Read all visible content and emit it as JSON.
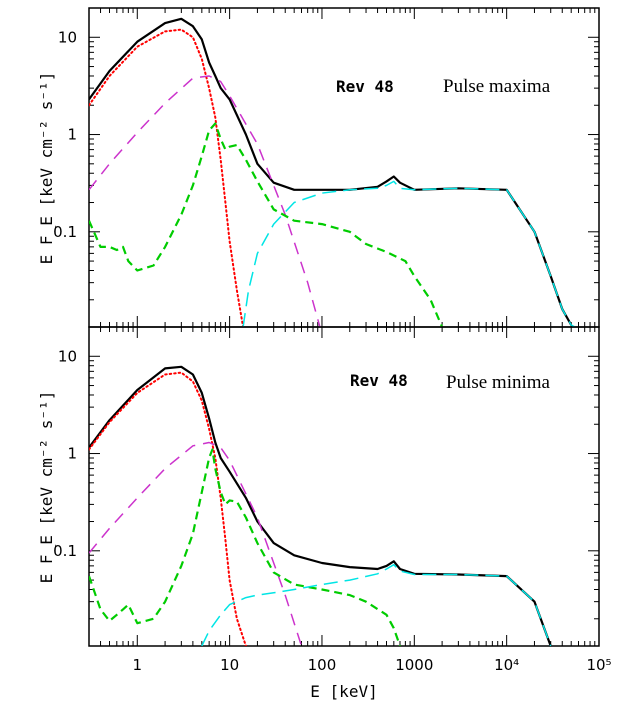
{
  "chart_data": [
    {
      "type": "line",
      "panel": "top",
      "annotation_rev": "Rev 48",
      "annotation_state": "Pulse maxima",
      "ylabel": "E F_E [keV cm⁻² s⁻¹]",
      "xlabel": "",
      "xscale": "log",
      "yscale": "log",
      "xlim": [
        0.3,
        100000
      ],
      "ylim": [
        0.0105,
        20
      ],
      "y_ticks": [
        "10",
        "1",
        "0.1"
      ],
      "x_ticks": [],
      "series": [
        {
          "color": "#000000",
          "dash": "solid",
          "width": 2.2,
          "x": [
            0.3,
            0.5,
            1,
            2,
            3,
            4,
            5,
            6,
            7,
            8,
            10,
            15,
            20,
            30,
            50,
            100,
            200,
            400,
            500,
            600,
            700,
            1000,
            3000,
            10000,
            20000,
            30000,
            40000,
            50000
          ],
          "y": [
            2.3,
            4.5,
            9.0,
            14.0,
            15.5,
            13.0,
            9.5,
            5.5,
            4.0,
            3.0,
            2.3,
            1.0,
            0.5,
            0.32,
            0.27,
            0.27,
            0.27,
            0.29,
            0.33,
            0.37,
            0.32,
            0.27,
            0.28,
            0.27,
            0.1,
            0.035,
            0.016,
            0.011
          ]
        },
        {
          "color": "#ff0000",
          "dash": "dotted",
          "width": 2.0,
          "x": [
            0.3,
            0.5,
            1,
            2,
            3,
            4,
            5,
            6,
            7,
            8,
            9,
            10,
            12,
            14
          ],
          "y": [
            2.0,
            4.0,
            8.0,
            11.5,
            12.0,
            10.0,
            6.0,
            3.0,
            1.5,
            0.55,
            0.2,
            0.08,
            0.025,
            0.0105
          ]
        },
        {
          "color": "#cc33cc",
          "dash": "12,8",
          "width": 1.5,
          "x": [
            0.3,
            0.5,
            1,
            2,
            4,
            6,
            8,
            10,
            20,
            40,
            70,
            95
          ],
          "y": [
            0.27,
            0.5,
            1.05,
            2.1,
            3.8,
            4.0,
            3.5,
            2.5,
            0.8,
            0.15,
            0.03,
            0.0105
          ]
        },
        {
          "color": "#00cc00",
          "dash": "8,5",
          "width": 2.2,
          "x": [
            0.3,
            0.4,
            0.5,
            0.6,
            0.7,
            0.8,
            1.0,
            1.5,
            2,
            3,
            4,
            5,
            6,
            7,
            8,
            9,
            10,
            12,
            15,
            20,
            30,
            50,
            100,
            200,
            300,
            500,
            800,
            1000,
            1500,
            2000
          ],
          "y": [
            0.13,
            0.07,
            0.07,
            0.065,
            0.07,
            0.05,
            0.04,
            0.045,
            0.07,
            0.15,
            0.3,
            0.6,
            1.1,
            1.3,
            0.9,
            0.7,
            0.75,
            0.78,
            0.55,
            0.33,
            0.17,
            0.13,
            0.12,
            0.1,
            0.075,
            0.062,
            0.05,
            0.035,
            0.02,
            0.0105
          ]
        },
        {
          "color": "#00e5e5",
          "dash": "14,7",
          "width": 1.5,
          "x": [
            14,
            16,
            20,
            30,
            50,
            100,
            200,
            400,
            500,
            600,
            700,
            1000,
            3000,
            10000,
            20000,
            30000,
            40000,
            50000,
            55000
          ],
          "y": [
            0.0105,
            0.025,
            0.06,
            0.12,
            0.2,
            0.25,
            0.27,
            0.28,
            0.3,
            0.33,
            0.28,
            0.27,
            0.28,
            0.27,
            0.1,
            0.035,
            0.016,
            0.011,
            0.0105
          ]
        }
      ]
    },
    {
      "type": "line",
      "panel": "bottom",
      "annotation_rev": "Rev 48",
      "annotation_state": "Pulse minima",
      "ylabel": "E F_E [keV cm⁻² s⁻¹]",
      "xlabel": "E [keV]",
      "xscale": "log",
      "yscale": "log",
      "xlim": [
        0.3,
        100000
      ],
      "ylim": [
        0.0105,
        20
      ],
      "y_ticks": [
        "10",
        "1",
        "0.1"
      ],
      "x_ticks": [
        "1",
        "10",
        "100",
        "1000",
        "10⁴",
        "10⁵"
      ],
      "series": [
        {
          "color": "#000000",
          "dash": "solid",
          "width": 2.2,
          "x": [
            0.3,
            0.5,
            1,
            2,
            3,
            4,
            5,
            6,
            7,
            8,
            10,
            15,
            20,
            30,
            50,
            100,
            200,
            400,
            500,
            600,
            700,
            1000,
            3000,
            10000,
            20000,
            30000
          ],
          "y": [
            1.15,
            2.2,
            4.5,
            7.5,
            7.8,
            6.5,
            4.2,
            2.3,
            1.3,
            0.9,
            0.65,
            0.35,
            0.2,
            0.12,
            0.09,
            0.075,
            0.068,
            0.065,
            0.07,
            0.078,
            0.065,
            0.058,
            0.057,
            0.055,
            0.03,
            0.0105
          ]
        },
        {
          "color": "#ff0000",
          "dash": "dotted",
          "width": 2.0,
          "x": [
            0.3,
            0.5,
            1,
            2,
            3,
            4,
            5,
            6,
            7,
            8,
            9,
            10,
            12,
            15
          ],
          "y": [
            1.1,
            2.1,
            4.2,
            6.5,
            6.8,
            5.5,
            3.5,
            1.8,
            0.9,
            0.35,
            0.13,
            0.05,
            0.02,
            0.0105
          ]
        },
        {
          "color": "#cc33cc",
          "dash": "12,8",
          "width": 1.5,
          "x": [
            0.3,
            0.5,
            1,
            2,
            4,
            6,
            8,
            10,
            20,
            40,
            60
          ],
          "y": [
            0.095,
            0.17,
            0.35,
            0.7,
            1.2,
            1.3,
            1.15,
            0.85,
            0.22,
            0.035,
            0.0105
          ]
        },
        {
          "color": "#00cc00",
          "dash": "8,5",
          "width": 2.2,
          "x": [
            0.3,
            0.4,
            0.5,
            0.6,
            0.7,
            0.8,
            1.0,
            1.5,
            2,
            3,
            4,
            5,
            6,
            6.5,
            7,
            8,
            9,
            10,
            12,
            15,
            20,
            30,
            50,
            100,
            200,
            300,
            500,
            600,
            700
          ],
          "y": [
            0.055,
            0.025,
            0.019,
            0.022,
            0.025,
            0.028,
            0.018,
            0.02,
            0.03,
            0.07,
            0.15,
            0.4,
            0.9,
            1.1,
            0.7,
            0.4,
            0.3,
            0.33,
            0.32,
            0.22,
            0.12,
            0.06,
            0.045,
            0.04,
            0.035,
            0.03,
            0.022,
            0.016,
            0.0105
          ]
        },
        {
          "color": "#00e5e5",
          "dash": "14,7",
          "width": 1.5,
          "x": [
            5,
            6,
            8,
            10,
            15,
            20,
            30,
            50,
            100,
            200,
            400,
            500,
            600,
            700,
            1000,
            3000,
            10000,
            20000,
            30000
          ],
          "y": [
            0.0105,
            0.015,
            0.022,
            0.028,
            0.033,
            0.035,
            0.037,
            0.04,
            0.045,
            0.05,
            0.058,
            0.065,
            0.072,
            0.062,
            0.057,
            0.057,
            0.055,
            0.03,
            0.0105
          ]
        }
      ]
    }
  ]
}
